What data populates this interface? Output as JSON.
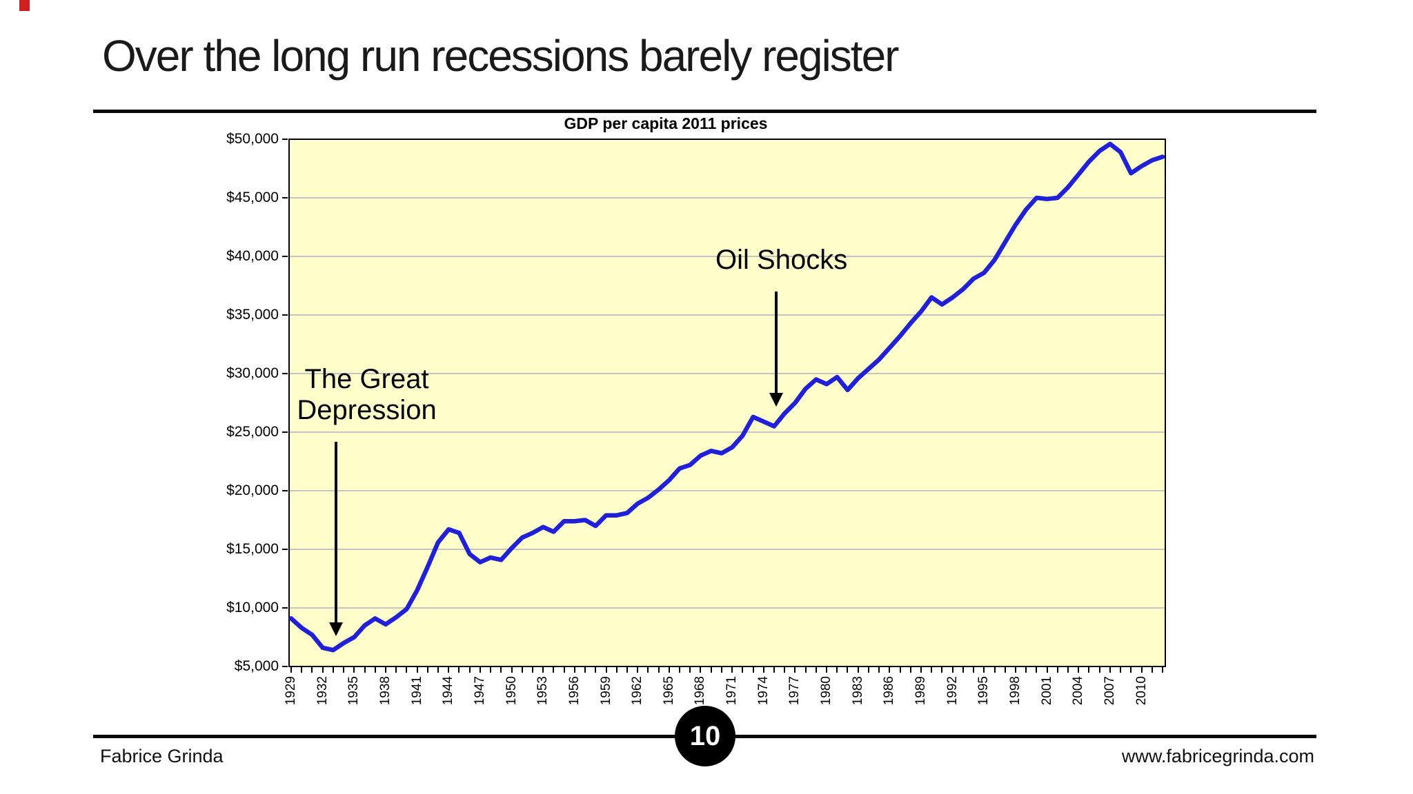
{
  "slide": {
    "title": "Over the long run recessions barely register",
    "page_number": "10",
    "footer_left": "Fabrice Grinda",
    "footer_right": "www.fabricegrinda.com"
  },
  "chart_data": {
    "type": "line",
    "title": "GDP per capita 2011 prices",
    "xlabel": "",
    "ylabel": "",
    "ylim": [
      5000,
      50000
    ],
    "ytick_step": 5000,
    "ytick_labels": [
      "$50,000",
      "$45,000",
      "$40,000",
      "$35,000",
      "$30,000",
      "$25,000",
      "$20,000",
      "$15,000",
      "$10,000",
      "$5,000"
    ],
    "grid": "horizontal-only",
    "legend": "none",
    "plot_bg_color": "#FFFFCC",
    "line_color": "#2020D8",
    "years": [
      1929,
      1930,
      1931,
      1932,
      1933,
      1934,
      1935,
      1936,
      1937,
      1938,
      1939,
      1940,
      1941,
      1942,
      1943,
      1944,
      1945,
      1946,
      1947,
      1948,
      1949,
      1950,
      1951,
      1952,
      1953,
      1954,
      1955,
      1956,
      1957,
      1958,
      1959,
      1960,
      1961,
      1962,
      1963,
      1964,
      1965,
      1966,
      1967,
      1968,
      1969,
      1970,
      1971,
      1972,
      1973,
      1974,
      1975,
      1976,
      1977,
      1978,
      1979,
      1980,
      1981,
      1982,
      1983,
      1984,
      1985,
      1986,
      1987,
      1988,
      1989,
      1990,
      1991,
      1992,
      1993,
      1994,
      1995,
      1996,
      1997,
      1998,
      1999,
      2000,
      2001,
      2002,
      2003,
      2004,
      2005,
      2006,
      2007,
      2008,
      2009,
      2010,
      2011,
      2012
    ],
    "values": [
      9100,
      8300,
      7700,
      6600,
      6400,
      7000,
      7500,
      8500,
      9100,
      8600,
      9200,
      9900,
      11500,
      13500,
      15600,
      16700,
      16400,
      14600,
      13900,
      14300,
      14100,
      15100,
      16000,
      16400,
      16900,
      16500,
      17400,
      17400,
      17500,
      17000,
      17900,
      17900,
      18100,
      18900,
      19400,
      20100,
      20900,
      21900,
      22200,
      23000,
      23400,
      23200,
      23700,
      24700,
      26300,
      25900,
      25500,
      26600,
      27500,
      28700,
      29500,
      29100,
      29700,
      28600,
      29600,
      30400,
      31200,
      32200,
      33200,
      34300,
      35300,
      36500,
      35900,
      36500,
      37200,
      38100,
      38600,
      39700,
      41200,
      42700,
      44000,
      45000,
      44900,
      45000,
      45900,
      47000,
      48100,
      49000,
      49600,
      48900,
      47100,
      47700,
      48200,
      48500
    ],
    "xtick_label_years": [
      1929,
      1932,
      1935,
      1938,
      1941,
      1944,
      1947,
      1950,
      1953,
      1956,
      1959,
      1962,
      1965,
      1968,
      1971,
      1974,
      1977,
      1980,
      1983,
      1986,
      1989,
      1992,
      1995,
      1998,
      2001,
      2004,
      2007,
      2010
    ],
    "annotations": [
      {
        "label": "The Great Depression",
        "lines": [
          "The Great",
          "Depression"
        ],
        "text_year": 1936.2,
        "text_value": 30850,
        "arrow_year": 1933.3,
        "arrow_from_value": 24200,
        "arrow_to_value": 7600
      },
      {
        "label": "Oil Shocks",
        "lines": [
          "Oil Shocks"
        ],
        "text_year": 1975.7,
        "text_value": 41000,
        "arrow_year": 1975.2,
        "arrow_from_value": 37000,
        "arrow_to_value": 27200
      }
    ]
  }
}
